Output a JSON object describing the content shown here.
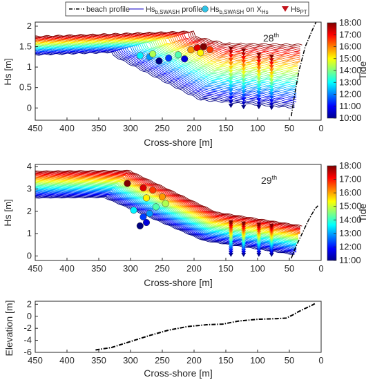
{
  "chart_data": [
    {
      "type": "line",
      "panel": "top",
      "annotation": "28",
      "annotation_sup": "th",
      "xlabel": "Cross-shore [m]",
      "ylabel": "Hs",
      "ylabel_unit": "[m]",
      "xlim": [
        450,
        0
      ],
      "ylim": [
        -0.3,
        2.1
      ],
      "xticks": [
        "450",
        "400",
        "350",
        "300",
        "250",
        "200",
        "150",
        "100",
        "50",
        "0"
      ],
      "yticks": [
        "2",
        "1.5",
        "1",
        "0.5",
        "0"
      ],
      "colorbar": {
        "label": "Tide",
        "range": [
          10,
          18
        ],
        "ticks": [
          "18:00",
          "17:00",
          "16:00",
          "15:00",
          "14:00",
          "13:00",
          "12:00",
          "11:00",
          "10:00"
        ]
      },
      "hs_profiles_summary": {
        "offshore_hs_range": [
          1.3,
          1.75
        ],
        "nearshore_hs_range": [
          0.0,
          1.55
        ],
        "count": 40
      },
      "hs_swash_points": [
        {
          "x": 270,
          "y": 1.25
        },
        {
          "x": 285,
          "y": 1.28
        },
        {
          "x": 265,
          "y": 1.32
        },
        {
          "x": 240,
          "y": 1.22
        },
        {
          "x": 255,
          "y": 1.15
        },
        {
          "x": 225,
          "y": 1.3
        },
        {
          "x": 215,
          "y": 1.2
        },
        {
          "x": 205,
          "y": 1.42
        },
        {
          "x": 195,
          "y": 1.47
        },
        {
          "x": 185,
          "y": 1.5
        },
        {
          "x": 175,
          "y": 1.43
        },
        {
          "x": 190,
          "y": 1.35
        }
      ],
      "hs_pt_points": [
        {
          "x": 142,
          "values_range": [
            0.05,
            1.45
          ]
        },
        {
          "x": 122,
          "values_range": [
            0.02,
            1.4
          ]
        },
        {
          "x": 98,
          "values_range": [
            0.02,
            1.3
          ]
        },
        {
          "x": 78,
          "values_range": [
            0.0,
            1.25
          ]
        }
      ],
      "beach_profile": [
        [
          47,
          -0.2
        ],
        [
          42,
          0.3
        ],
        [
          35,
          0.9
        ],
        [
          25,
          1.5
        ],
        [
          14,
          1.9
        ],
        [
          8,
          2.1
        ]
      ]
    },
    {
      "type": "line",
      "panel": "middle",
      "annotation": "29",
      "annotation_sup": "th",
      "xlabel": "Cross-shore [m]",
      "ylabel": "Hs",
      "ylabel_unit": "[m]",
      "xlim": [
        450,
        0
      ],
      "ylim": [
        -0.2,
        4.1
      ],
      "xticks": [
        "450",
        "400",
        "350",
        "300",
        "250",
        "200",
        "150",
        "100",
        "50",
        "0"
      ],
      "yticks": [
        "4",
        "3",
        "2",
        "1",
        "0"
      ],
      "colorbar": {
        "label": "Tide",
        "range": [
          11,
          18
        ],
        "ticks": [
          "18:00",
          "17:00",
          "16:00",
          "15:00",
          "14:00",
          "13:00",
          "12:00",
          "11:00"
        ]
      },
      "hs_profiles_summary": {
        "offshore_hs_range": [
          2.6,
          3.8
        ],
        "nearshore_hs_range": [
          0.05,
          1.35
        ],
        "count": 40
      },
      "hs_swash_points": [
        {
          "x": 305,
          "y": 3.25
        },
        {
          "x": 280,
          "y": 3.05
        },
        {
          "x": 265,
          "y": 2.95
        },
        {
          "x": 250,
          "y": 2.65
        },
        {
          "x": 275,
          "y": 2.6
        },
        {
          "x": 245,
          "y": 2.35
        },
        {
          "x": 260,
          "y": 2.2
        },
        {
          "x": 295,
          "y": 2.05
        },
        {
          "x": 270,
          "y": 1.9
        },
        {
          "x": 280,
          "y": 1.75
        },
        {
          "x": 275,
          "y": 1.5
        },
        {
          "x": 285,
          "y": 1.35
        }
      ],
      "hs_pt_points": [
        {
          "x": 142,
          "values_range": [
            0.05,
            1.5
          ]
        },
        {
          "x": 122,
          "values_range": [
            0.05,
            1.45
          ]
        },
        {
          "x": 98,
          "values_range": [
            0.05,
            1.4
          ]
        },
        {
          "x": 78,
          "values_range": [
            0.05,
            1.35
          ]
        }
      ],
      "beach_profile": [
        [
          47,
          -0.1
        ],
        [
          40,
          0.4
        ],
        [
          30,
          1.0
        ],
        [
          20,
          1.6
        ],
        [
          10,
          2.1
        ],
        [
          5,
          2.25
        ]
      ]
    },
    {
      "type": "line",
      "panel": "bottom",
      "xlabel": "Cross-shore [m]",
      "ylabel": "Elevation [m]",
      "xlim": [
        450,
        0
      ],
      "ylim": [
        -6,
        2.5
      ],
      "xticks": [
        "450",
        "400",
        "350",
        "300",
        "250",
        "200",
        "150",
        "100",
        "50",
        "0"
      ],
      "yticks": [
        "2",
        "0",
        "-2",
        "-4",
        "-6"
      ],
      "beach_profile": [
        [
          355,
          -5.6
        ],
        [
          330,
          -5.2
        ],
        [
          300,
          -4.2
        ],
        [
          270,
          -3.2
        ],
        [
          240,
          -2.3
        ],
        [
          210,
          -1.7
        ],
        [
          180,
          -1.4
        ],
        [
          155,
          -1.3
        ],
        [
          130,
          -0.8
        ],
        [
          100,
          -0.5
        ],
        [
          70,
          -0.4
        ],
        [
          55,
          -0.3
        ],
        [
          45,
          0.2
        ],
        [
          35,
          0.8
        ],
        [
          25,
          1.3
        ],
        [
          15,
          1.8
        ],
        [
          10,
          2.1
        ]
      ]
    }
  ],
  "legend": {
    "items": [
      {
        "label": "beach profile",
        "kind": "dashdot",
        "color": "#000000"
      },
      {
        "label": "Hs",
        "sub": "b,SWASH",
        "suffix": " profile",
        "kind": "line",
        "color": "#3a2fd0"
      },
      {
        "label": "Hs",
        "sub": "b,SWASH",
        "suffix": " on X",
        "sub2": "Hs",
        "kind": "circle",
        "color": "#2ec3e6"
      },
      {
        "label": "Hs",
        "sub": "PT",
        "suffix": "",
        "kind": "triangle",
        "color": "#c3141c"
      }
    ]
  }
}
